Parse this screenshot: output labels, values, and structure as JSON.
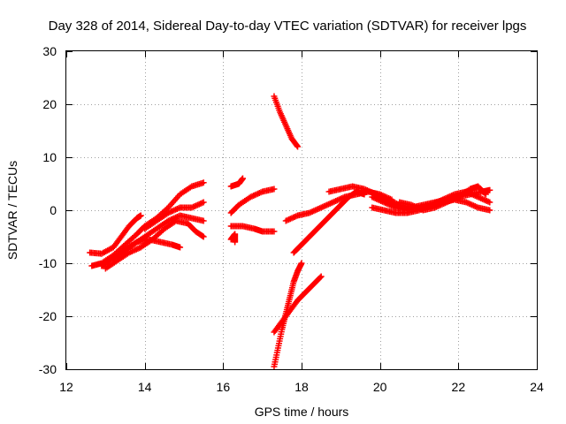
{
  "chart_data": {
    "type": "scatter",
    "title": "Day 328 of 2014, Sidereal Day-to-day VTEC variation (SDTVAR) for receiver lpgs",
    "xlabel": "GPS time / hours",
    "ylabel": "SDTVAR / TECUs",
    "xlim": [
      12,
      24
    ],
    "ylim": [
      -30,
      30
    ],
    "xticks": [
      12,
      14,
      16,
      18,
      20,
      22,
      24
    ],
    "yticks": [
      -30,
      -20,
      -10,
      0,
      10,
      20,
      30
    ],
    "xtick_labels": [
      "12",
      "14",
      "16",
      "18",
      "20",
      "22",
      "24"
    ],
    "ytick_labels": [
      "-30",
      "-20",
      "-10",
      "0",
      "10",
      "20",
      "30"
    ],
    "grid": true,
    "marker": "+",
    "color": "#ff0000",
    "series": [
      {
        "points": [
          [
            12.65,
            -10.5
          ],
          [
            12.9,
            -10.0
          ],
          [
            13.2,
            -8.5
          ],
          [
            13.5,
            -6.5
          ],
          [
            13.8,
            -4.5
          ],
          [
            14.0,
            -3.0
          ],
          [
            14.3,
            -1.5
          ],
          [
            14.6,
            0.5
          ],
          [
            14.9,
            3.0
          ],
          [
            15.2,
            4.5
          ],
          [
            15.5,
            5.2
          ]
        ]
      },
      {
        "points": [
          [
            12.6,
            -8.0
          ],
          [
            12.9,
            -8.2
          ],
          [
            13.2,
            -7.0
          ],
          [
            13.4,
            -5.0
          ],
          [
            13.6,
            -3.0
          ],
          [
            13.8,
            -1.5
          ],
          [
            13.9,
            -1.0
          ]
        ]
      },
      {
        "points": [
          [
            12.9,
            -10.5
          ],
          [
            13.1,
            -9.5
          ],
          [
            13.4,
            -8.0
          ],
          [
            13.7,
            -6.5
          ],
          [
            14.0,
            -5.0
          ],
          [
            14.3,
            -3.5
          ],
          [
            14.6,
            -2.0
          ],
          [
            14.9,
            -1.0
          ],
          [
            15.2,
            -1.5
          ],
          [
            15.5,
            -2.0
          ]
        ]
      },
      {
        "points": [
          [
            13.0,
            -11.0
          ],
          [
            13.3,
            -9.5
          ],
          [
            13.6,
            -8.0
          ],
          [
            13.9,
            -7.0
          ],
          [
            14.2,
            -5.5
          ],
          [
            14.5,
            -3.5
          ],
          [
            14.8,
            -2.0
          ],
          [
            15.1,
            -2.5
          ],
          [
            15.3,
            -4.0
          ],
          [
            15.5,
            -5.0
          ]
        ]
      },
      {
        "points": [
          [
            13.2,
            -9.0
          ],
          [
            13.5,
            -7.5
          ],
          [
            13.8,
            -6.0
          ],
          [
            14.1,
            -5.5
          ],
          [
            14.4,
            -6.0
          ],
          [
            14.7,
            -6.5
          ],
          [
            14.9,
            -7.0
          ]
        ]
      },
      {
        "points": [
          [
            14.0,
            -3.5
          ],
          [
            14.3,
            -2.0
          ],
          [
            14.6,
            -0.5
          ],
          [
            14.9,
            0.5
          ],
          [
            15.2,
            0.5
          ],
          [
            15.5,
            1.5
          ]
        ]
      },
      {
        "points": [
          [
            16.2,
            4.5
          ],
          [
            16.4,
            5.0
          ],
          [
            16.5,
            6.0
          ]
        ]
      },
      {
        "points": [
          [
            16.2,
            -0.5
          ],
          [
            16.4,
            1.0
          ],
          [
            16.7,
            2.5
          ],
          [
            17.0,
            3.5
          ],
          [
            17.3,
            4.0
          ]
        ]
      },
      {
        "points": [
          [
            16.2,
            -3.0
          ],
          [
            16.5,
            -3.0
          ],
          [
            16.8,
            -3.5
          ],
          [
            17.0,
            -4.0
          ],
          [
            17.3,
            -4.0
          ]
        ]
      },
      {
        "points": [
          [
            16.2,
            -5.5
          ],
          [
            16.3,
            -4.5
          ],
          [
            16.3,
            -6.0
          ]
        ]
      },
      {
        "points": [
          [
            17.3,
            21.5
          ],
          [
            17.45,
            18.5
          ],
          [
            17.6,
            16.0
          ],
          [
            17.75,
            13.5
          ],
          [
            17.9,
            12.0
          ]
        ]
      },
      {
        "points": [
          [
            17.3,
            -23.0
          ],
          [
            17.5,
            -21.0
          ],
          [
            17.7,
            -19.0
          ],
          [
            17.9,
            -17.0
          ],
          [
            18.1,
            -15.5
          ],
          [
            18.3,
            -14.0
          ],
          [
            18.5,
            -12.5
          ]
        ]
      },
      {
        "points": [
          [
            17.3,
            -29.5
          ],
          [
            17.4,
            -26.0
          ],
          [
            17.5,
            -22.5
          ],
          [
            17.6,
            -19.5
          ],
          [
            17.7,
            -16.5
          ],
          [
            17.8,
            -13.5
          ],
          [
            17.9,
            -11.5
          ],
          [
            18.0,
            -10.0
          ]
        ]
      },
      {
        "points": [
          [
            17.8,
            -8.0
          ],
          [
            18.0,
            -6.5
          ],
          [
            18.2,
            -5.0
          ],
          [
            18.4,
            -3.5
          ],
          [
            18.6,
            -2.0
          ],
          [
            18.8,
            -0.5
          ],
          [
            19.0,
            1.0
          ],
          [
            19.2,
            2.5
          ],
          [
            19.4,
            3.5
          ],
          [
            19.6,
            3.0
          ]
        ]
      },
      {
        "points": [
          [
            17.6,
            -2.0
          ],
          [
            17.9,
            -1.0
          ],
          [
            18.2,
            -0.5
          ],
          [
            18.5,
            0.5
          ],
          [
            18.8,
            1.5
          ],
          [
            19.1,
            2.5
          ],
          [
            19.4,
            3.0
          ],
          [
            19.7,
            3.5
          ],
          [
            20.0,
            3.0
          ],
          [
            20.3,
            2.0
          ]
        ]
      },
      {
        "points": [
          [
            18.7,
            3.5
          ],
          [
            19.0,
            4.0
          ],
          [
            19.3,
            4.5
          ],
          [
            19.6,
            4.0
          ],
          [
            19.9,
            3.0
          ],
          [
            20.2,
            2.0
          ],
          [
            20.5,
            1.0
          ],
          [
            20.8,
            0.5
          ],
          [
            21.1,
            1.0
          ],
          [
            21.4,
            1.5
          ],
          [
            21.7,
            2.0
          ],
          [
            22.0,
            2.5
          ],
          [
            22.3,
            3.0
          ],
          [
            22.6,
            3.5
          ],
          [
            22.8,
            3.8
          ]
        ]
      },
      {
        "points": [
          [
            19.8,
            2.5
          ],
          [
            20.1,
            1.5
          ],
          [
            20.4,
            0.5
          ],
          [
            20.7,
            0.0
          ],
          [
            21.0,
            0.5
          ],
          [
            21.3,
            1.0
          ],
          [
            21.6,
            2.0
          ],
          [
            21.9,
            3.0
          ],
          [
            22.2,
            3.5
          ],
          [
            22.5,
            2.5
          ],
          [
            22.8,
            1.5
          ]
        ]
      },
      {
        "points": [
          [
            19.8,
            0.5
          ],
          [
            20.1,
            0.0
          ],
          [
            20.4,
            -0.5
          ],
          [
            20.7,
            -0.5
          ],
          [
            21.0,
            0.0
          ],
          [
            21.3,
            1.0
          ],
          [
            21.6,
            1.5
          ],
          [
            21.9,
            2.0
          ],
          [
            22.2,
            1.5
          ],
          [
            22.5,
            0.5
          ],
          [
            22.8,
            0.0
          ]
        ]
      },
      {
        "points": [
          [
            20.5,
            1.5
          ],
          [
            20.8,
            1.0
          ],
          [
            21.1,
            0.0
          ],
          [
            21.4,
            0.5
          ],
          [
            21.7,
            1.5
          ],
          [
            22.0,
            2.5
          ],
          [
            22.3,
            4.0
          ],
          [
            22.5,
            4.5
          ],
          [
            22.7,
            3.0
          ]
        ]
      }
    ]
  }
}
